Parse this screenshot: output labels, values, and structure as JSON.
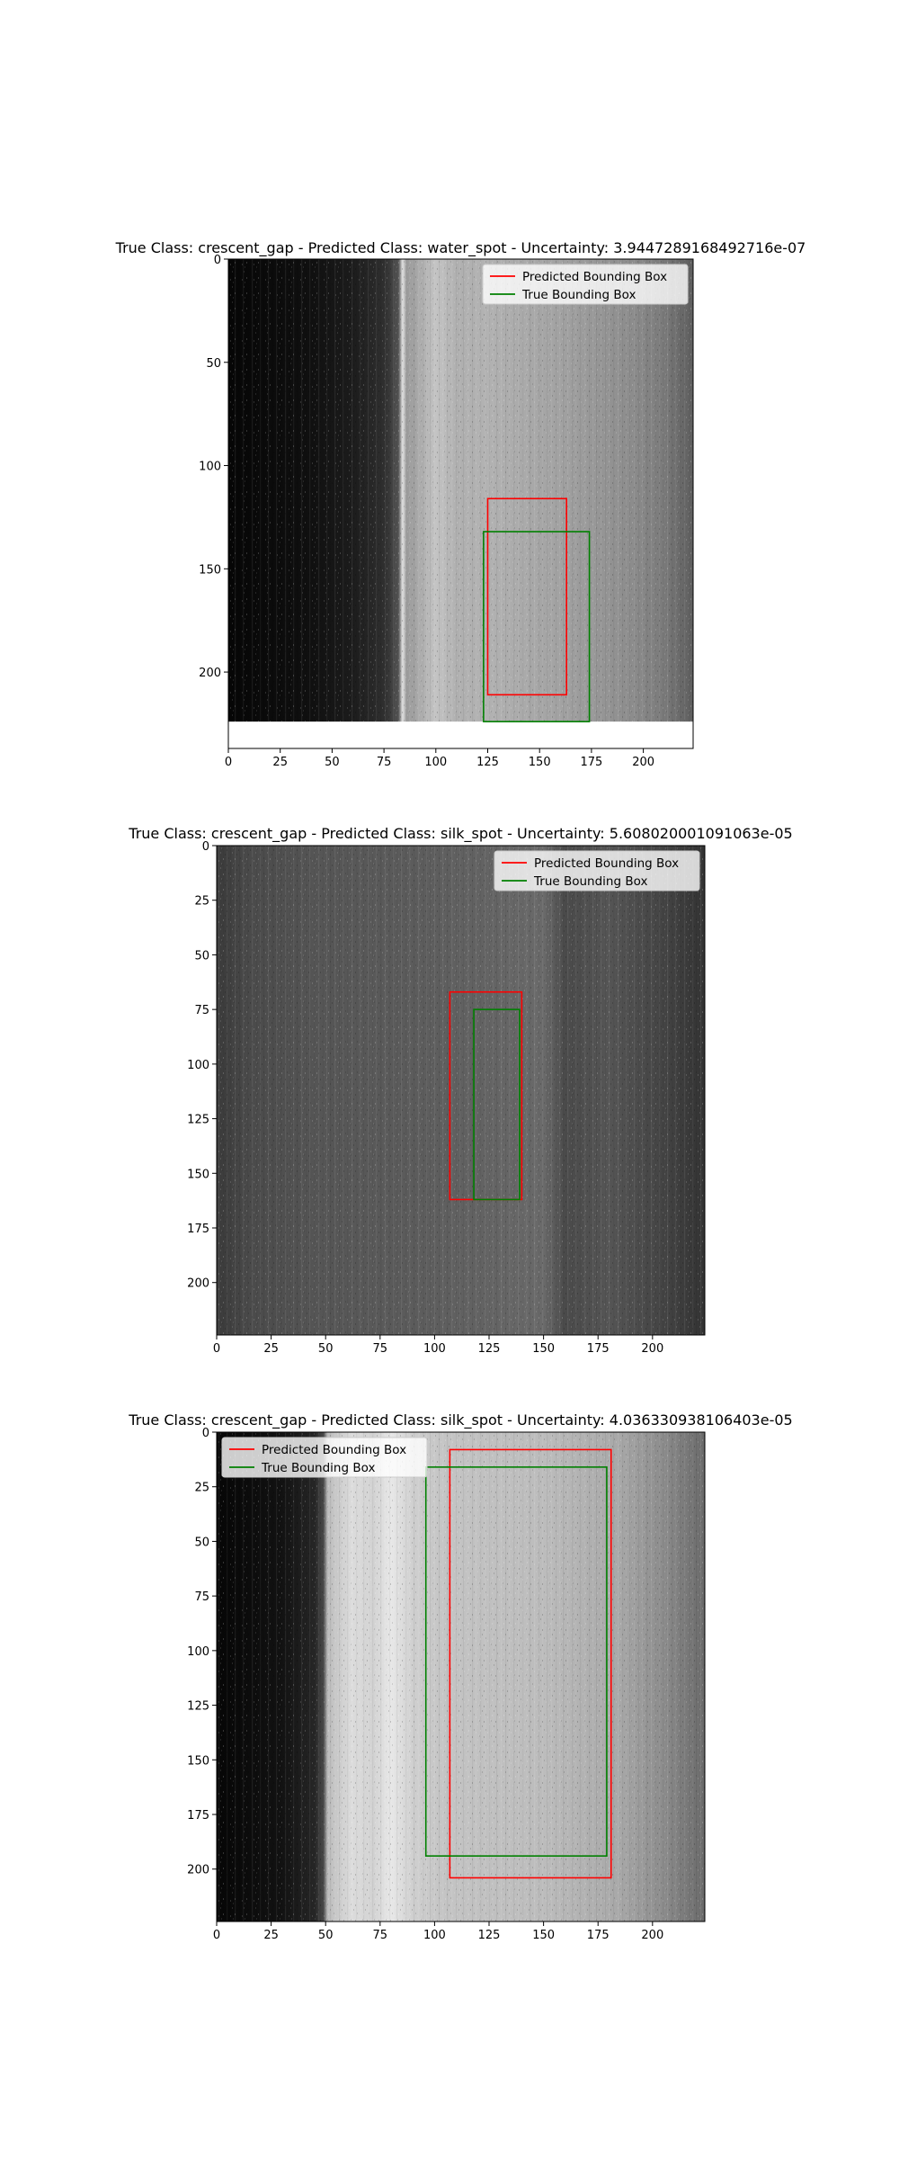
{
  "chart_data": [
    {
      "type": "image_with_bounding_boxes",
      "title": "True Class: crescent_gap - Predicted Class: water_spot - Uncertainty: 3.9447289168492716e-07",
      "true_class": "crescent_gap",
      "predicted_class": "water_spot",
      "uncertainty": "3.9447289168492716e-07",
      "xlim": [
        0,
        224
      ],
      "ylim": [
        237,
        0
      ],
      "image_rows": 224,
      "xticks": [
        0,
        25,
        50,
        75,
        100,
        125,
        150,
        175,
        200
      ],
      "yticks": [
        0,
        50,
        100,
        150,
        200
      ],
      "image_profile": [
        [
          0,
          "#060606"
        ],
        [
          40,
          "#101010"
        ],
        [
          60,
          "#1c1c1c"
        ],
        [
          76,
          "#303030"
        ],
        [
          82,
          "#555555"
        ],
        [
          84,
          "#e2e2e2"
        ],
        [
          86,
          "#9a9a9a"
        ],
        [
          92,
          "#aaaaaa"
        ],
        [
          100,
          "#c4c4c4"
        ],
        [
          110,
          "#b0b0b0"
        ],
        [
          124,
          "#b2b2b2"
        ],
        [
          160,
          "#a2a2a2"
        ],
        [
          195,
          "#8c8c8c"
        ],
        [
          210,
          "#7a7a7a"
        ],
        [
          224,
          "#5e5e5e"
        ]
      ],
      "boxes": [
        {
          "name": "Predicted Bounding Box",
          "color": "#ff0000",
          "x_min": 125,
          "y_min": 116,
          "x_max": 163,
          "y_max": 211
        },
        {
          "name": "True Bounding Box",
          "color": "#008000",
          "x_min": 123,
          "y_min": 132,
          "x_max": 174,
          "y_max": 224
        }
      ],
      "legend": {
        "location": "upper right",
        "entries": [
          "Predicted Bounding Box",
          "True Bounding Box"
        ]
      }
    },
    {
      "type": "image_with_bounding_boxes",
      "title": "True Class: crescent_gap - Predicted Class: silk_spot - Uncertainty: 5.608020001091063e-05",
      "true_class": "crescent_gap",
      "predicted_class": "silk_spot",
      "uncertainty": "5.608020001091063e-05",
      "xlim": [
        0,
        224
      ],
      "ylim": [
        224,
        0
      ],
      "image_rows": 224,
      "xticks": [
        0,
        25,
        50,
        75,
        100,
        125,
        150,
        175,
        200
      ],
      "yticks": [
        0,
        25,
        50,
        75,
        100,
        125,
        150,
        175,
        200
      ],
      "image_profile": [
        [
          0,
          "#3a3a3a"
        ],
        [
          15,
          "#4a4a4a"
        ],
        [
          45,
          "#555555"
        ],
        [
          80,
          "#5a5a5a"
        ],
        [
          110,
          "#606060"
        ],
        [
          135,
          "#666666"
        ],
        [
          150,
          "#6a6a6a"
        ],
        [
          160,
          "#4a4a4a"
        ],
        [
          180,
          "#555555"
        ],
        [
          205,
          "#444444"
        ],
        [
          224,
          "#333333"
        ]
      ],
      "boxes": [
        {
          "name": "Predicted Bounding Box",
          "color": "#ff0000",
          "x_min": 107,
          "y_min": 67,
          "x_max": 140,
          "y_max": 162
        },
        {
          "name": "True Bounding Box",
          "color": "#008000",
          "x_min": 118,
          "y_min": 75,
          "x_max": 139,
          "y_max": 162
        }
      ],
      "legend": {
        "location": "upper right",
        "entries": [
          "Predicted Bounding Box",
          "True Bounding Box"
        ]
      }
    },
    {
      "type": "image_with_bounding_boxes",
      "title": "True Class: crescent_gap - Predicted Class: silk_spot - Uncertainty: 4.036330938106403e-05",
      "true_class": "crescent_gap",
      "predicted_class": "silk_spot",
      "uncertainty": "4.036330938106403e-05",
      "xlim": [
        0,
        224
      ],
      "ylim": [
        224,
        0
      ],
      "image_rows": 224,
      "xticks": [
        0,
        25,
        50,
        75,
        100,
        125,
        150,
        175,
        200
      ],
      "yticks": [
        0,
        25,
        50,
        75,
        100,
        125,
        150,
        175,
        200
      ],
      "image_profile": [
        [
          0,
          "#060606"
        ],
        [
          30,
          "#121212"
        ],
        [
          45,
          "#262626"
        ],
        [
          49,
          "#4a4a4a"
        ],
        [
          51,
          "#bdbdbd"
        ],
        [
          62,
          "#dcdcdc"
        ],
        [
          72,
          "#d2d2d2"
        ],
        [
          80,
          "#e8e8e8"
        ],
        [
          90,
          "#cfcfcf"
        ],
        [
          105,
          "#c4c4c4"
        ],
        [
          150,
          "#bcbcbc"
        ],
        [
          185,
          "#a8a8a8"
        ],
        [
          205,
          "#8c8c8c"
        ],
        [
          224,
          "#6a6a6a"
        ]
      ],
      "boxes": [
        {
          "name": "Predicted Bounding Box",
          "color": "#ff0000",
          "x_min": 107,
          "y_min": 8,
          "x_max": 181,
          "y_max": 204
        },
        {
          "name": "True Bounding Box",
          "color": "#008000",
          "x_min": 96,
          "y_min": 16,
          "x_max": 179,
          "y_max": 194
        }
      ],
      "legend": {
        "location": "upper left",
        "entries": [
          "Predicted Bounding Box",
          "True Bounding Box"
        ]
      }
    }
  ]
}
